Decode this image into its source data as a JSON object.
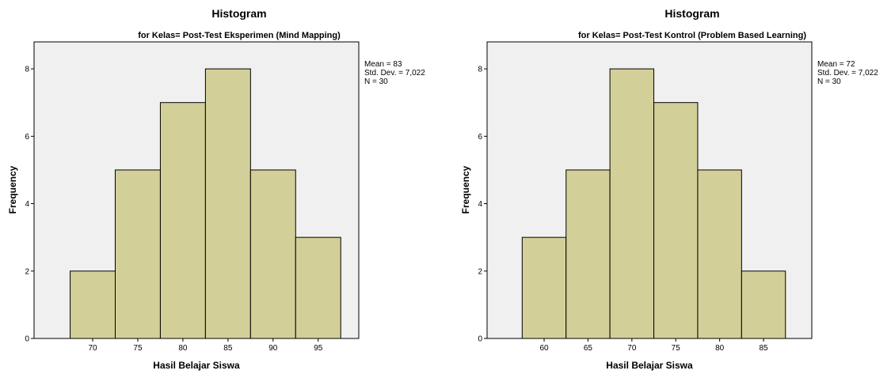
{
  "chart_data": [
    {
      "type": "bar",
      "title": "Histogram",
      "subtitle": "for Kelas= Post-Test Eksperimen (Mind Mapping)",
      "xlabel": "Hasil Belajar Siswa",
      "ylabel": "Frequency",
      "bins": [
        {
          "from": 67.5,
          "to": 72.5,
          "value": 2
        },
        {
          "from": 72.5,
          "to": 77.5,
          "value": 5
        },
        {
          "from": 77.5,
          "to": 82.5,
          "value": 7
        },
        {
          "from": 82.5,
          "to": 87.5,
          "value": 8
        },
        {
          "from": 87.5,
          "to": 92.5,
          "value": 5
        },
        {
          "from": 92.5,
          "to": 97.5,
          "value": 3
        }
      ],
      "xticks": [
        70,
        75,
        80,
        85,
        90,
        95
      ],
      "xlim": [
        63.5,
        99.5
      ],
      "yticks": [
        0,
        2,
        4,
        6,
        8
      ],
      "ylim": [
        0,
        8.8
      ],
      "stats": [
        "Mean = 83",
        "Std. Dev. = 7,022",
        "N = 30"
      ],
      "bar_color": "#d3cf98",
      "plot_bg": "#f0f0f0"
    },
    {
      "type": "bar",
      "title": "Histogram",
      "subtitle": "for Kelas= Post-Test Kontrol (Problem Based Learning)",
      "xlabel": "Hasil Belajar Siswa",
      "ylabel": "Frequency",
      "bins": [
        {
          "from": 57.5,
          "to": 62.5,
          "value": 3
        },
        {
          "from": 62.5,
          "to": 67.5,
          "value": 5
        },
        {
          "from": 67.5,
          "to": 72.5,
          "value": 8
        },
        {
          "from": 72.5,
          "to": 77.5,
          "value": 7
        },
        {
          "from": 77.5,
          "to": 82.5,
          "value": 5
        },
        {
          "from": 82.5,
          "to": 87.5,
          "value": 2
        }
      ],
      "xticks": [
        60,
        65,
        70,
        75,
        80,
        85
      ],
      "xlim": [
        53.5,
        90.5
      ],
      "yticks": [
        0,
        2,
        4,
        6,
        8
      ],
      "ylim": [
        0,
        8.8
      ],
      "stats": [
        "Mean = 72",
        "Std. Dev. = 7,022",
        "N = 30"
      ],
      "bar_color": "#d3cf98",
      "plot_bg": "#f0f0f0"
    }
  ]
}
